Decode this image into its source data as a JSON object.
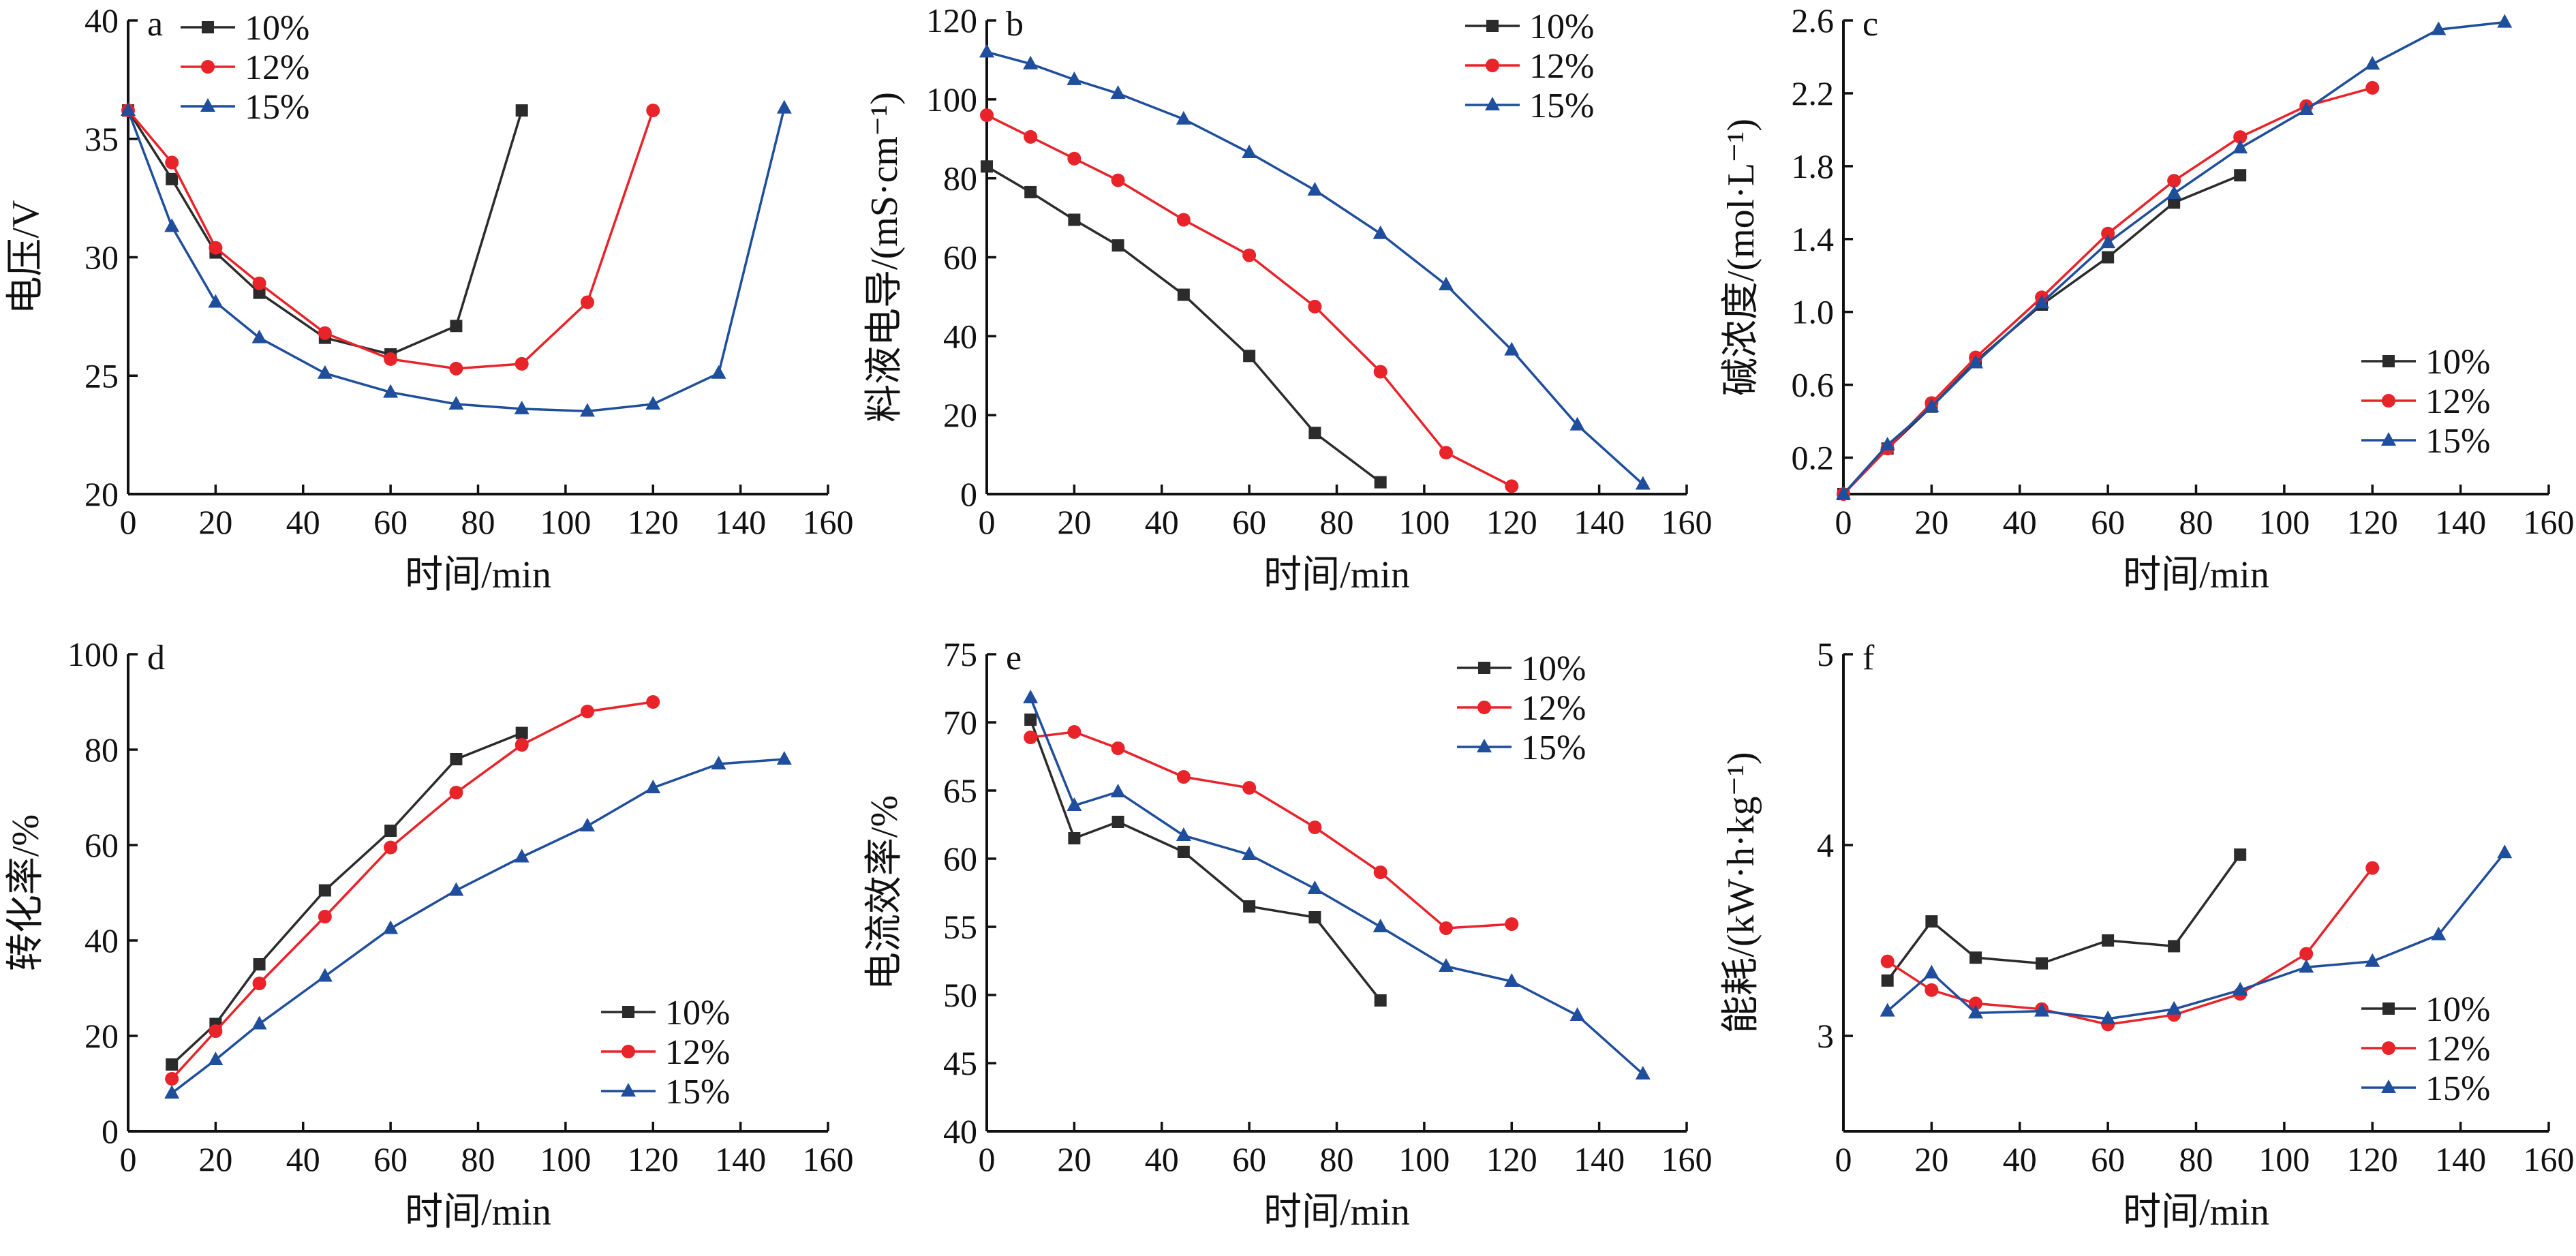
{
  "colors": {
    "10%": "#2b2b2b",
    "12%": "#e8232a",
    "15%": "#1f4e9c"
  },
  "chart_data": [
    {
      "type": "line",
      "panel_letter": "a",
      "xlabel": "时间/min",
      "ylabel": "电压/V",
      "xlim": [
        0,
        160
      ],
      "ylim": [
        20,
        40
      ],
      "xticks": [
        0,
        20,
        40,
        60,
        80,
        100,
        120,
        140,
        160
      ],
      "yticks": [
        20,
        25,
        30,
        35,
        40
      ],
      "legend_position": "top-left",
      "series": [
        {
          "name": "10%",
          "marker": "square",
          "x": [
            0,
            10,
            20,
            30,
            45,
            60,
            75,
            90
          ],
          "y": [
            36.2,
            33.3,
            30.2,
            28.5,
            26.6,
            25.9,
            27.1,
            36.2
          ]
        },
        {
          "name": "12%",
          "marker": "circle",
          "x": [
            0,
            10,
            20,
            30,
            45,
            60,
            75,
            90,
            105,
            120
          ],
          "y": [
            36.2,
            34.0,
            30.4,
            28.9,
            26.8,
            25.7,
            25.3,
            25.5,
            28.1,
            36.2
          ]
        },
        {
          "name": "15%",
          "marker": "triangle",
          "x": [
            0,
            10,
            20,
            30,
            45,
            60,
            75,
            90,
            105,
            120,
            135,
            150
          ],
          "y": [
            36.2,
            31.3,
            28.1,
            26.6,
            25.1,
            24.3,
            23.8,
            23.6,
            23.5,
            23.8,
            25.1,
            36.3
          ]
        }
      ]
    },
    {
      "type": "line",
      "panel_letter": "b",
      "xlabel": "时间/min",
      "ylabel": "料液电导/(mS·cm⁻¹)",
      "xlim": [
        0,
        160
      ],
      "ylim": [
        0,
        120
      ],
      "xticks": [
        0,
        20,
        40,
        60,
        80,
        100,
        120,
        140,
        160
      ],
      "yticks": [
        0,
        20,
        40,
        60,
        80,
        100,
        120
      ],
      "legend_position": "top-right",
      "series": [
        {
          "name": "10%",
          "marker": "square",
          "x": [
            0,
            10,
            20,
            30,
            45,
            60,
            75,
            90
          ],
          "y": [
            83,
            76.5,
            69.5,
            63,
            50.5,
            35,
            15.5,
            3
          ]
        },
        {
          "name": "12%",
          "marker": "circle",
          "x": [
            0,
            10,
            20,
            30,
            45,
            60,
            75,
            90,
            105,
            120
          ],
          "y": [
            96,
            90.5,
            85,
            79.5,
            69.5,
            60.5,
            47.5,
            31,
            10.5,
            2
          ]
        },
        {
          "name": "15%",
          "marker": "triangle",
          "x": [
            0,
            10,
            20,
            30,
            45,
            60,
            75,
            90,
            105,
            120,
            135,
            150
          ],
          "y": [
            112,
            109,
            105,
            101.5,
            95,
            86.5,
            77,
            66,
            53,
            36.5,
            17.5,
            2.5
          ]
        }
      ]
    },
    {
      "type": "line",
      "panel_letter": "c",
      "xlabel": "时间/min",
      "ylabel": "碱浓度/(mol·L⁻¹)",
      "xlim": [
        0,
        160
      ],
      "ylim": [
        0,
        2.6
      ],
      "xticks": [
        0,
        20,
        40,
        60,
        80,
        100,
        120,
        140,
        160
      ],
      "yticks": [
        0.2,
        0.6,
        1.0,
        1.4,
        1.8,
        2.2,
        2.6
      ],
      "ytick_labels": [
        "0.2",
        "0.6",
        "1.0",
        "1.4",
        "1.8",
        "2.2",
        "2.6"
      ],
      "legend_position": "bottom-right",
      "series": [
        {
          "name": "10%",
          "marker": "square",
          "x": [
            0,
            10,
            20,
            30,
            45,
            60,
            75,
            90
          ],
          "y": [
            0,
            0.25,
            0.48,
            0.73,
            1.04,
            1.3,
            1.6,
            1.75
          ]
        },
        {
          "name": "12%",
          "marker": "circle",
          "x": [
            0,
            10,
            20,
            30,
            45,
            60,
            75,
            90,
            105,
            120
          ],
          "y": [
            0,
            0.25,
            0.5,
            0.75,
            1.08,
            1.43,
            1.72,
            1.96,
            2.13,
            2.23
          ]
        },
        {
          "name": "15%",
          "marker": "triangle",
          "x": [
            0,
            10,
            20,
            30,
            45,
            60,
            75,
            90,
            105,
            120,
            135,
            150
          ],
          "y": [
            0,
            0.27,
            0.48,
            0.72,
            1.05,
            1.38,
            1.65,
            1.9,
            2.11,
            2.36,
            2.55,
            2.59
          ]
        }
      ]
    },
    {
      "type": "line",
      "panel_letter": "d",
      "xlabel": "时间/min",
      "ylabel": "转化率/%",
      "xlim": [
        0,
        160
      ],
      "ylim": [
        0,
        100
      ],
      "xticks": [
        0,
        20,
        40,
        60,
        80,
        100,
        120,
        140,
        160
      ],
      "yticks": [
        0,
        20,
        40,
        60,
        80,
        100
      ],
      "legend_position": "bottom-right",
      "series": [
        {
          "name": "10%",
          "marker": "square",
          "x": [
            10,
            20,
            30,
            45,
            60,
            75,
            90
          ],
          "y": [
            14,
            22.5,
            35,
            50.5,
            63,
            78,
            83.5
          ]
        },
        {
          "name": "12%",
          "marker": "circle",
          "x": [
            10,
            20,
            30,
            45,
            60,
            75,
            90,
            105,
            120
          ],
          "y": [
            11,
            21,
            31,
            45,
            59.5,
            71,
            81,
            88,
            90
          ]
        },
        {
          "name": "15%",
          "marker": "triangle",
          "x": [
            10,
            20,
            30,
            45,
            60,
            75,
            90,
            105,
            120,
            135,
            150
          ],
          "y": [
            8,
            15,
            22.5,
            32.5,
            42.5,
            50.5,
            57.5,
            64,
            72,
            77,
            78
          ]
        }
      ]
    },
    {
      "type": "line",
      "panel_letter": "e",
      "xlabel": "时间/min",
      "ylabel": "电流效率/%",
      "xlim": [
        0,
        160
      ],
      "ylim": [
        40,
        75
      ],
      "xticks": [
        0,
        20,
        40,
        60,
        80,
        100,
        120,
        140,
        160
      ],
      "yticks": [
        40,
        45,
        50,
        55,
        60,
        65,
        70,
        75
      ],
      "legend_position": "top-right",
      "series": [
        {
          "name": "10%",
          "marker": "square",
          "x": [
            10,
            20,
            30,
            45,
            60,
            75,
            90
          ],
          "y": [
            70.2,
            61.5,
            62.7,
            60.5,
            56.5,
            55.7,
            49.6
          ]
        },
        {
          "name": "12%",
          "marker": "circle",
          "x": [
            10,
            20,
            30,
            45,
            60,
            75,
            90,
            105,
            120
          ],
          "y": [
            68.9,
            69.3,
            68.1,
            66,
            65.2,
            62.3,
            59,
            54.9,
            55.2
          ]
        },
        {
          "name": "15%",
          "marker": "triangle",
          "x": [
            10,
            20,
            30,
            45,
            60,
            75,
            90,
            105,
            120,
            135,
            150
          ],
          "y": [
            71.8,
            63.9,
            64.9,
            61.7,
            60.3,
            57.8,
            55,
            52.1,
            51,
            48.5,
            44.2
          ]
        }
      ]
    },
    {
      "type": "line",
      "panel_letter": "f",
      "xlabel": "时间/min",
      "ylabel": "能耗/(kW·h·kg⁻¹)",
      "xlim": [
        0,
        160
      ],
      "ylim": [
        2.5,
        5
      ],
      "xticks": [
        0,
        20,
        40,
        60,
        80,
        100,
        120,
        140,
        160
      ],
      "yticks": [
        3,
        4,
        5
      ],
      "legend_position": "bottom-right",
      "series": [
        {
          "name": "10%",
          "marker": "square",
          "x": [
            10,
            20,
            30,
            45,
            60,
            75,
            90
          ],
          "y": [
            3.29,
            3.6,
            3.41,
            3.38,
            3.5,
            3.47,
            3.95
          ]
        },
        {
          "name": "12%",
          "marker": "circle",
          "x": [
            10,
            20,
            30,
            45,
            60,
            75,
            90,
            105,
            120
          ],
          "y": [
            3.39,
            3.24,
            3.17,
            3.14,
            3.06,
            3.11,
            3.22,
            3.43,
            3.88
          ]
        },
        {
          "name": "15%",
          "marker": "triangle",
          "x": [
            10,
            20,
            30,
            45,
            60,
            75,
            90,
            105,
            120,
            135,
            150
          ],
          "y": [
            3.13,
            3.33,
            3.12,
            3.13,
            3.09,
            3.14,
            3.24,
            3.36,
            3.39,
            3.53,
            3.96
          ]
        }
      ]
    }
  ]
}
